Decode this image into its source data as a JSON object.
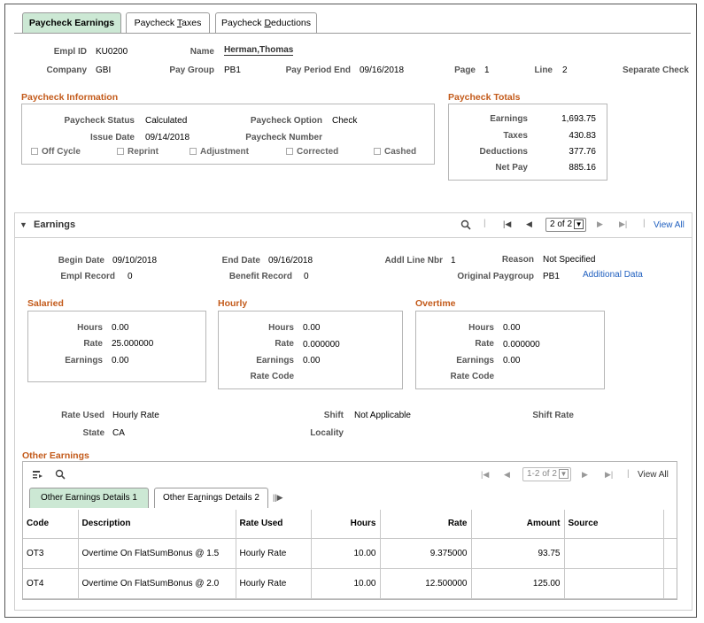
{
  "tabs": [
    {
      "label": "Paycheck Earnings"
    },
    {
      "label_pre": "Paycheck ",
      "label_u": "T",
      "label_post": "axes"
    },
    {
      "label_pre": "Paycheck ",
      "label_u": "D",
      "label_post": "eductions"
    }
  ],
  "header": {
    "empl_id_label": "Empl ID",
    "empl_id": "KU0200",
    "name_label": "Name",
    "name": "Herman,Thomas",
    "company_label": "Company",
    "company": "GBI",
    "pay_group_label": "Pay Group",
    "pay_group": "PB1",
    "pay_period_end_label": "Pay Period End",
    "pay_period_end": "09/16/2018",
    "page_label": "Page",
    "page": "1",
    "line_label": "Line",
    "line": "2",
    "separate_check_label": "Separate Check"
  },
  "paycheck_info": {
    "title": "Paycheck Information",
    "status_label": "Paycheck Status",
    "status": "Calculated",
    "option_label": "Paycheck Option",
    "option": "Check",
    "issue_date_label": "Issue Date",
    "issue_date": "09/14/2018",
    "number_label": "Paycheck Number",
    "checkboxes": [
      "Off Cycle",
      "Reprint",
      "Adjustment",
      "Corrected",
      "Cashed"
    ]
  },
  "paycheck_totals": {
    "title": "Paycheck Totals",
    "earnings_label": "Earnings",
    "earnings": "1,693.75",
    "taxes_label": "Taxes",
    "taxes": "430.83",
    "deductions_label": "Deductions",
    "deductions": "377.76",
    "net_pay_label": "Net Pay",
    "net_pay": "885.16"
  },
  "earnings": {
    "title": "Earnings",
    "pager": "2 of 2",
    "view_all": "View All",
    "begin_date_label": "Begin Date",
    "begin_date": "09/10/2018",
    "end_date_label": "End Date",
    "end_date": "09/16/2018",
    "addl_line_label": "Addl Line Nbr",
    "addl_line": "1",
    "reason_label": "Reason",
    "reason": "Not Specified",
    "empl_record_label": "Empl Record",
    "empl_record": "0",
    "benefit_record_label": "Benefit Record",
    "benefit_record": "0",
    "original_paygroup_label": "Original Paygroup",
    "original_paygroup": "PB1",
    "additional_data_link": "Additional Data",
    "salaried": {
      "title": "Salaried",
      "hours_label": "Hours",
      "hours": "0.00",
      "rate_label": "Rate",
      "rate": "25.000000",
      "earnings_label": "Earnings",
      "earnings": "0.00"
    },
    "hourly": {
      "title": "Hourly",
      "hours_label": "Hours",
      "hours": "0.00",
      "rate_label": "Rate",
      "rate": "0.000000",
      "earnings_label": "Earnings",
      "earnings": "0.00",
      "rate_code_label": "Rate Code"
    },
    "overtime": {
      "title": "Overtime",
      "hours_label": "Hours",
      "hours": "0.00",
      "rate_label": "Rate",
      "rate": "0.000000",
      "earnings_label": "Earnings",
      "earnings": "0.00",
      "rate_code_label": "Rate Code"
    },
    "rate_used_label": "Rate Used",
    "rate_used": "Hourly Rate",
    "shift_label": "Shift",
    "shift": "Not Applicable",
    "shift_rate_label": "Shift Rate",
    "state_label": "State",
    "state": "CA",
    "locality_label": "Locality"
  },
  "other_earnings": {
    "title": "Other Earnings",
    "pager": "1-2 of 2",
    "view_all": "View All",
    "subtab1": "Other Earnings Details 1",
    "subtab2_pre": "Other Ea",
    "subtab2_u": "r",
    "subtab2_post": "nings Details 2",
    "columns": [
      "Code",
      "Description",
      "Rate Used",
      "Hours",
      "Rate",
      "Amount",
      "Source"
    ],
    "rows": [
      {
        "code": "OT3",
        "description": "Overtime On FlatSumBonus @ 1.5",
        "rate_used": "Hourly Rate",
        "hours": "10.00",
        "rate": "9.375000",
        "amount": "93.75",
        "source": ""
      },
      {
        "code": "OT4",
        "description": "Overtime On FlatSumBonus @ 2.0",
        "rate_used": "Hourly Rate",
        "hours": "10.00",
        "rate": "12.500000",
        "amount": "125.00",
        "source": ""
      }
    ]
  },
  "colors": {
    "accent_section": "#c35a1a",
    "active_tab": "#cce8d4",
    "link": "#1f5fbf"
  },
  "icons": [
    "search-icon",
    "first-page-icon",
    "previous-page-icon",
    "next-page-icon",
    "last-page-icon",
    "collapse-triangle-icon",
    "personalize-grid-icon",
    "show-all-columns-icon"
  ]
}
